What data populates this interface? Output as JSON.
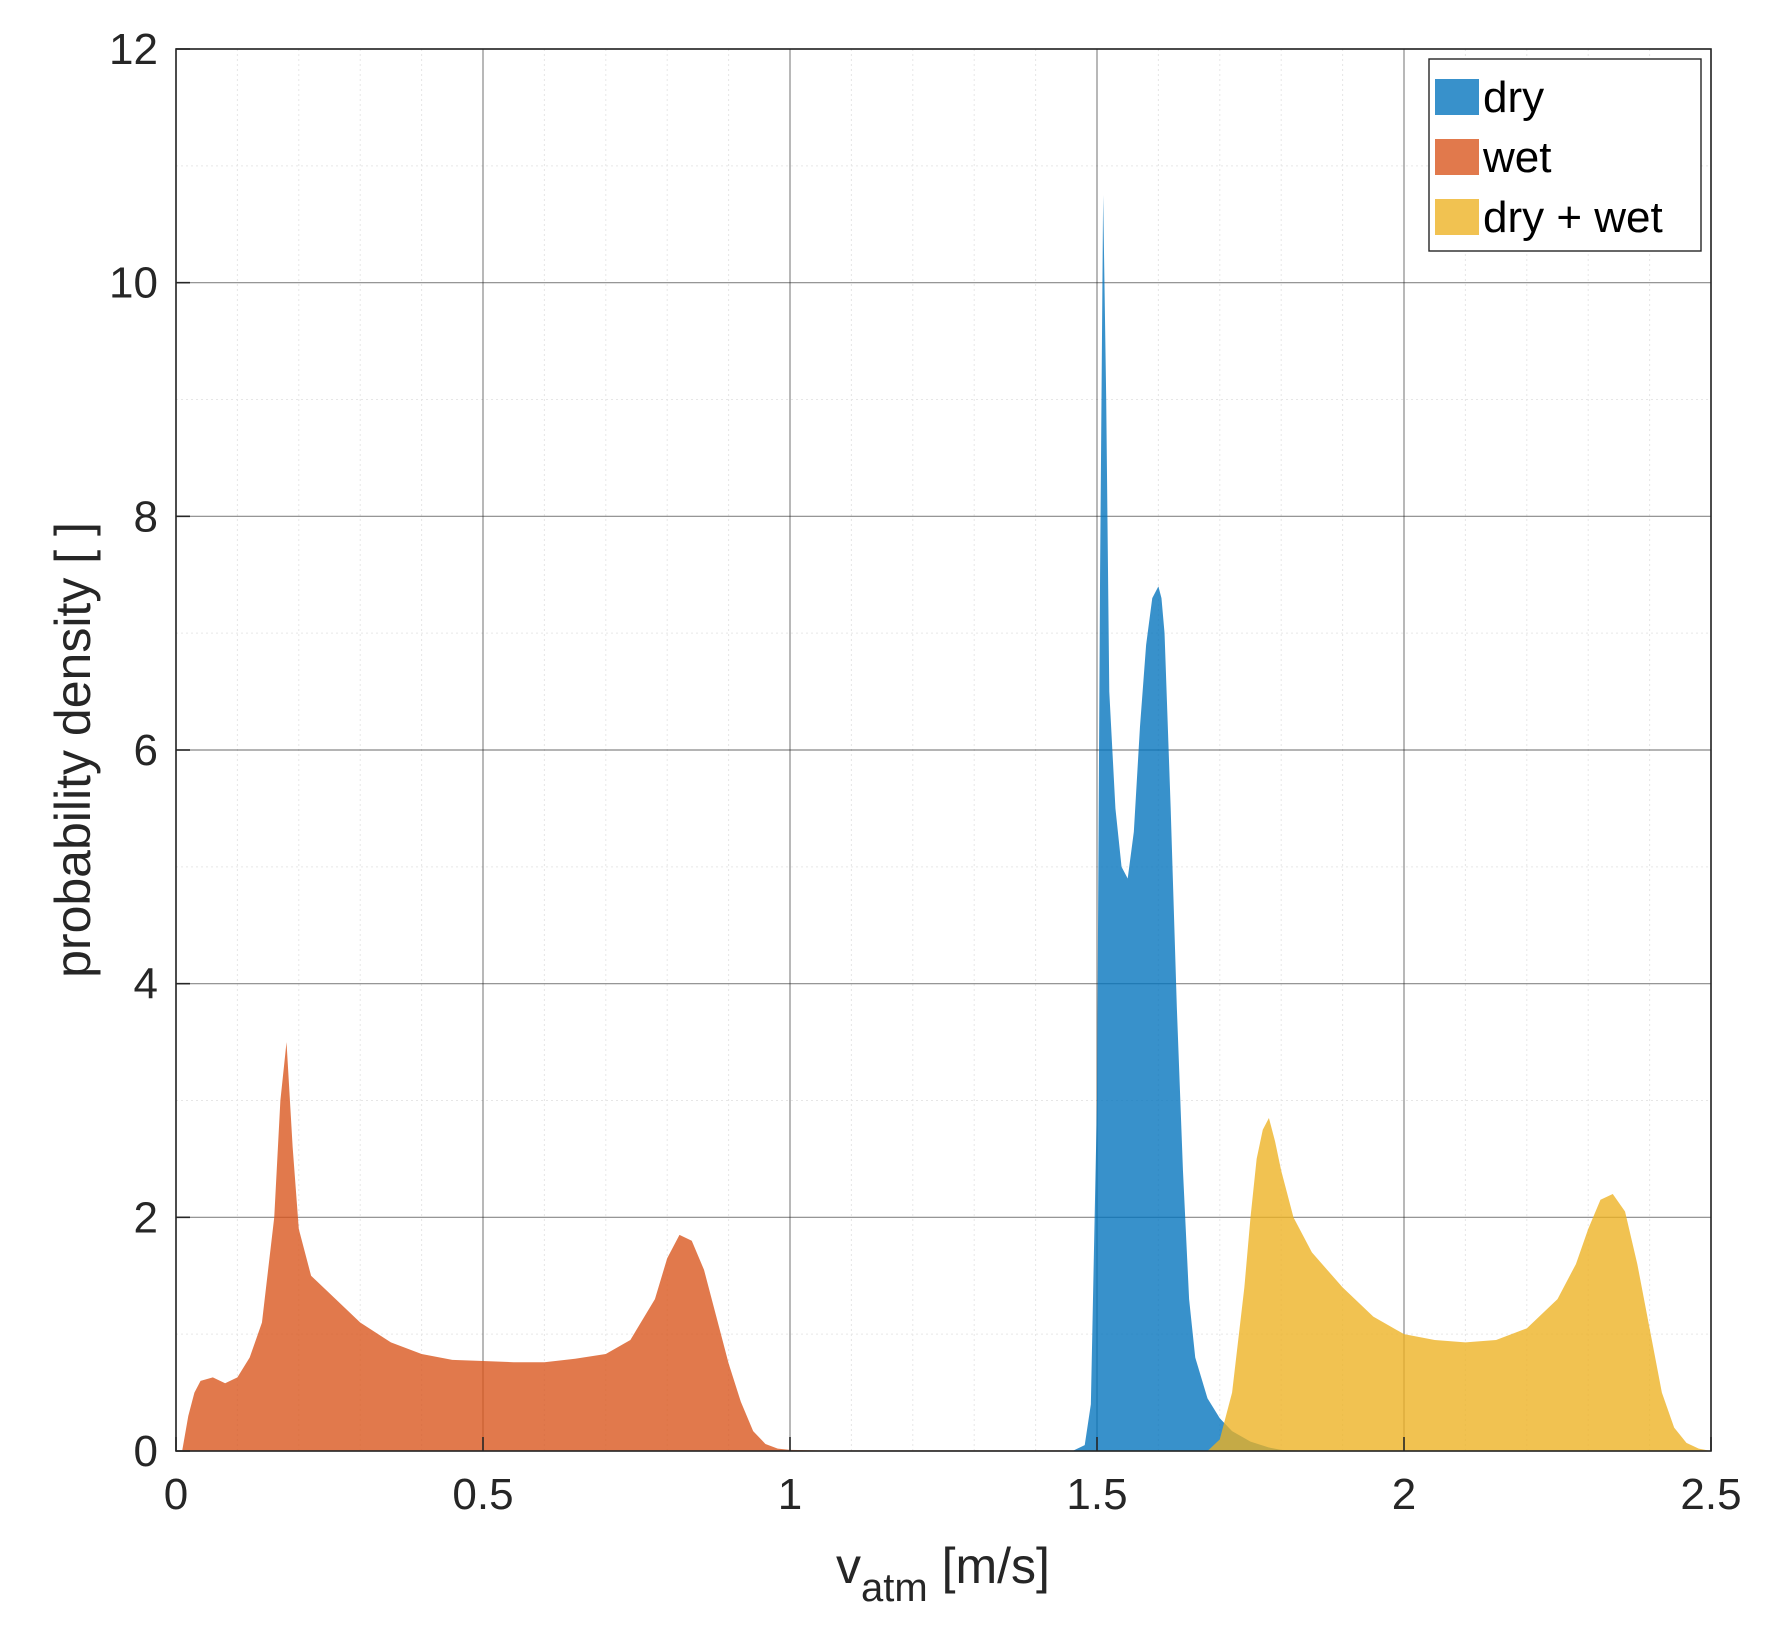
{
  "chart_data": {
    "type": "area",
    "title": "",
    "xlabel": {
      "main": "v",
      "subscript": "atm",
      "suffix": " [m/s]"
    },
    "ylabel": "probability density [ ]",
    "xlim": [
      0,
      2.5
    ],
    "ylim": [
      0,
      12
    ],
    "xticks": [
      0,
      0.5,
      1,
      1.5,
      2,
      2.5
    ],
    "xtick_labels": [
      "0",
      "0.5",
      "1",
      "1.5",
      "2",
      "2.5"
    ],
    "yticks": [
      0,
      2,
      4,
      6,
      8,
      10,
      12
    ],
    "ytick_labels": [
      "0",
      "2",
      "4",
      "6",
      "8",
      "10",
      "12"
    ],
    "grid": true,
    "minor_grid": true,
    "legend_position": "top-right",
    "series": [
      {
        "name": "dry",
        "color": "#0072BD",
        "x": [
          1.46,
          1.48,
          1.49,
          1.5,
          1.505,
          1.51,
          1.515,
          1.52,
          1.53,
          1.54,
          1.55,
          1.56,
          1.57,
          1.58,
          1.59,
          1.6,
          1.605,
          1.61,
          1.62,
          1.63,
          1.64,
          1.65,
          1.66,
          1.68,
          1.7,
          1.72,
          1.75,
          1.78,
          1.8,
          1.85
        ],
        "values": [
          0,
          0.05,
          0.4,
          3.0,
          7.5,
          10.75,
          9.0,
          6.5,
          5.5,
          5.0,
          4.9,
          5.3,
          6.2,
          6.9,
          7.3,
          7.4,
          7.3,
          7.0,
          5.5,
          3.8,
          2.4,
          1.3,
          0.8,
          0.45,
          0.28,
          0.17,
          0.08,
          0.03,
          0.01,
          0
        ]
      },
      {
        "name": "wet",
        "color": "#D95319",
        "x": [
          0.01,
          0.02,
          0.03,
          0.04,
          0.06,
          0.08,
          0.1,
          0.12,
          0.14,
          0.16,
          0.17,
          0.18,
          0.19,
          0.2,
          0.22,
          0.25,
          0.3,
          0.35,
          0.4,
          0.45,
          0.5,
          0.55,
          0.6,
          0.65,
          0.7,
          0.74,
          0.78,
          0.8,
          0.82,
          0.84,
          0.86,
          0.88,
          0.9,
          0.92,
          0.94,
          0.96,
          0.98,
          1.0,
          1.05,
          1.45,
          1.5
        ],
        "values": [
          0,
          0.3,
          0.5,
          0.6,
          0.63,
          0.58,
          0.63,
          0.8,
          1.1,
          2.0,
          3.0,
          3.5,
          2.6,
          1.9,
          1.5,
          1.35,
          1.1,
          0.93,
          0.83,
          0.78,
          0.77,
          0.76,
          0.76,
          0.79,
          0.83,
          0.95,
          1.3,
          1.65,
          1.85,
          1.8,
          1.55,
          1.15,
          0.75,
          0.42,
          0.17,
          0.06,
          0.02,
          0.01,
          0.005,
          0.005,
          0
        ]
      },
      {
        "name": "dry + wet",
        "color": "#EDB120",
        "x": [
          1.68,
          1.7,
          1.72,
          1.74,
          1.75,
          1.76,
          1.77,
          1.78,
          1.79,
          1.8,
          1.82,
          1.85,
          1.9,
          1.95,
          2.0,
          2.05,
          2.1,
          2.15,
          2.2,
          2.25,
          2.28,
          2.3,
          2.32,
          2.34,
          2.36,
          2.38,
          2.4,
          2.42,
          2.44,
          2.46,
          2.48,
          2.5
        ],
        "values": [
          0,
          0.1,
          0.5,
          1.4,
          2.0,
          2.5,
          2.75,
          2.85,
          2.65,
          2.4,
          2.0,
          1.7,
          1.4,
          1.15,
          1.0,
          0.95,
          0.93,
          0.95,
          1.05,
          1.3,
          1.6,
          1.9,
          2.15,
          2.2,
          2.05,
          1.6,
          1.05,
          0.5,
          0.2,
          0.07,
          0.02,
          0
        ]
      }
    ]
  }
}
